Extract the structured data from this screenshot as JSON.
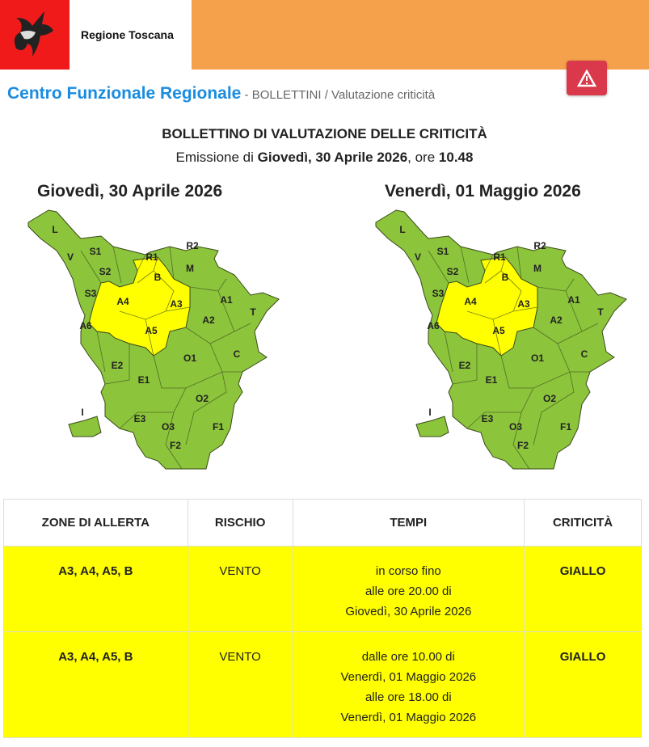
{
  "header": {
    "brand": "Regione Toscana",
    "colors": {
      "bar": "#f5a04a",
      "logo_bg": "#f01a1a",
      "alert_button": "#d9394a"
    },
    "alert_icon": "warning-triangle-icon"
  },
  "breadcrumb": {
    "main": "Centro Funzionale Regionale",
    "sep": " - ",
    "path": "BOLLETTINI / Valutazione criticità"
  },
  "bulletin": {
    "title": "BOLLETTINO DI VALUTAZIONE DELLE CRITICITÀ",
    "emission_prefix": "Emissione di ",
    "emission_date": "Giovedì, 30 Aprile 2026",
    "emission_mid": ", ore ",
    "emission_time": "10.48"
  },
  "maps": [
    {
      "day": "Giovedì, 30 Aprile 2026",
      "yellow_zones": [
        "A3",
        "A4",
        "A5",
        "B"
      ]
    },
    {
      "day": "Venerdì, 01 Maggio 2026",
      "yellow_zones": [
        "A3",
        "A4",
        "A5",
        "B"
      ]
    }
  ],
  "zones": [
    "L",
    "V",
    "S1",
    "S2",
    "S3",
    "A6",
    "R1",
    "R2",
    "B",
    "M",
    "A4",
    "A3",
    "A5",
    "A1",
    "T",
    "A2",
    "C",
    "O1",
    "E2",
    "E1",
    "O2",
    "E3",
    "O3",
    "F1",
    "F2",
    "I"
  ],
  "map_colors": {
    "green": "#8cc43c",
    "yellow": "#ffff00"
  },
  "table": {
    "headers": [
      "ZONE DI ALLERTA",
      "RISCHIO",
      "TEMPI",
      "CRITICITÀ"
    ],
    "rows": [
      {
        "zones": "A3, A4, A5, B",
        "risk": "VENTO",
        "times": [
          "in corso fino",
          "alle ore 20.00 di",
          "Giovedì, 30 Aprile 2026"
        ],
        "level": "GIALLO"
      },
      {
        "zones": "A3, A4, A5, B",
        "risk": "VENTO",
        "times": [
          "dalle ore 10.00 di",
          "Venerdì, 01 Maggio 2026",
          "alle ore 18.00 di",
          "Venerdì, 01 Maggio 2026"
        ],
        "level": "GIALLO"
      }
    ]
  }
}
